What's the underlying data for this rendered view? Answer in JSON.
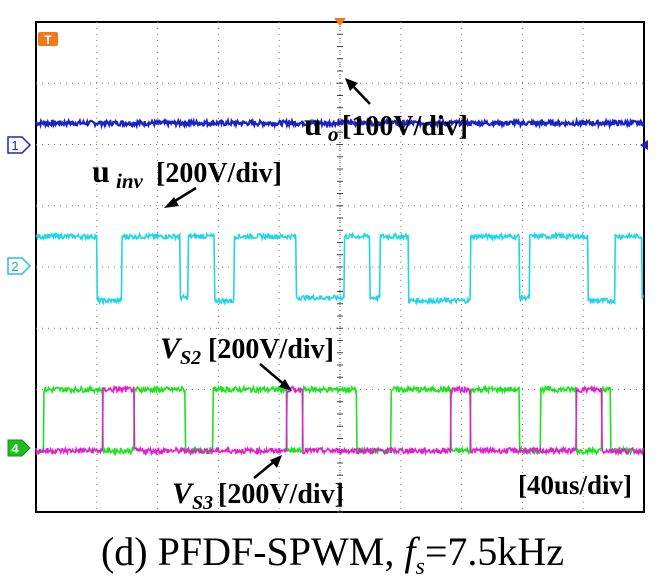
{
  "figure": {
    "caption_prefix": "(d) PFDF-SPWM,",
    "caption_var": "f",
    "caption_sub": "s",
    "caption_value": "=7.5kHz"
  },
  "chart_data": {
    "type": "line",
    "title": "",
    "xlabel": "",
    "ylabel": "",
    "time_scale": "[40us/div]",
    "grid": true,
    "markers": {
      "trigger": "T",
      "channel_1": "1",
      "channel_2": "2",
      "channel_4": "4"
    },
    "colors": {
      "u_o": "#1a23c8",
      "u_inv": "#20d6e6",
      "V_S2": "#1ee21e",
      "V_S3": "#e020d0",
      "trigger": "#f07a1a"
    },
    "series": [
      {
        "name": "u_o",
        "label_main": "u",
        "label_sub": "o",
        "label_scale": "[100V/div]",
        "shape": "dc",
        "level_div": 5.35
      },
      {
        "name": "u_inv",
        "label_main": "u",
        "label_sub": "inv",
        "label_scale": "[200V/div]",
        "shape": "pulse",
        "baseline_div": 2.5,
        "levels_div": [
          -0.05,
          1.0
        ],
        "edges_div": [
          0.0,
          0.0,
          1.0,
          1.41,
          2.37,
          2.5,
          2.94,
          3.26,
          4.28,
          5.07,
          5.49,
          5.66,
          6.12,
          7.15,
          7.95,
          8.12,
          9.08,
          9.52,
          9.97,
          10.0
        ],
        "state_sequence": [
          0,
          1,
          -1,
          1,
          0,
          1,
          -1,
          1,
          0,
          1,
          0,
          1,
          -1,
          1,
          0,
          1,
          -1,
          1,
          0
        ]
      },
      {
        "name": "V_S2",
        "label_main": "V",
        "label_sub": "S2",
        "label_scale": "[200V/div]",
        "shape": "pulse",
        "baseline_div": 0.0,
        "levels_div": [
          0.0,
          1.0
        ],
        "edges_div": [
          0.0,
          0.12,
          1.1,
          1.62,
          2.45,
          2.91,
          4.12,
          4.38,
          5.27,
          5.84,
          6.82,
          7.15,
          7.95,
          8.3,
          8.89,
          9.3,
          9.45,
          10.0
        ],
        "state_sequence": [
          0,
          1,
          0,
          1,
          0,
          1,
          0,
          1,
          0,
          1,
          0,
          1,
          0,
          1,
          0,
          1,
          0
        ]
      },
      {
        "name": "V_S3",
        "label_main": "V",
        "label_sub": "S3",
        "label_scale": "[200V/div]",
        "shape": "pulse",
        "baseline_div": 0.0,
        "levels_div": [
          0.0,
          1.0
        ],
        "edges_div": [
          1.1,
          1.62,
          4.12,
          4.38,
          6.82,
          7.15,
          8.89,
          9.3
        ],
        "state_sequence": [
          1,
          1,
          1,
          1
        ]
      }
    ],
    "xlim": [
      0,
      10
    ],
    "ylim": [
      -1,
      7
    ]
  }
}
